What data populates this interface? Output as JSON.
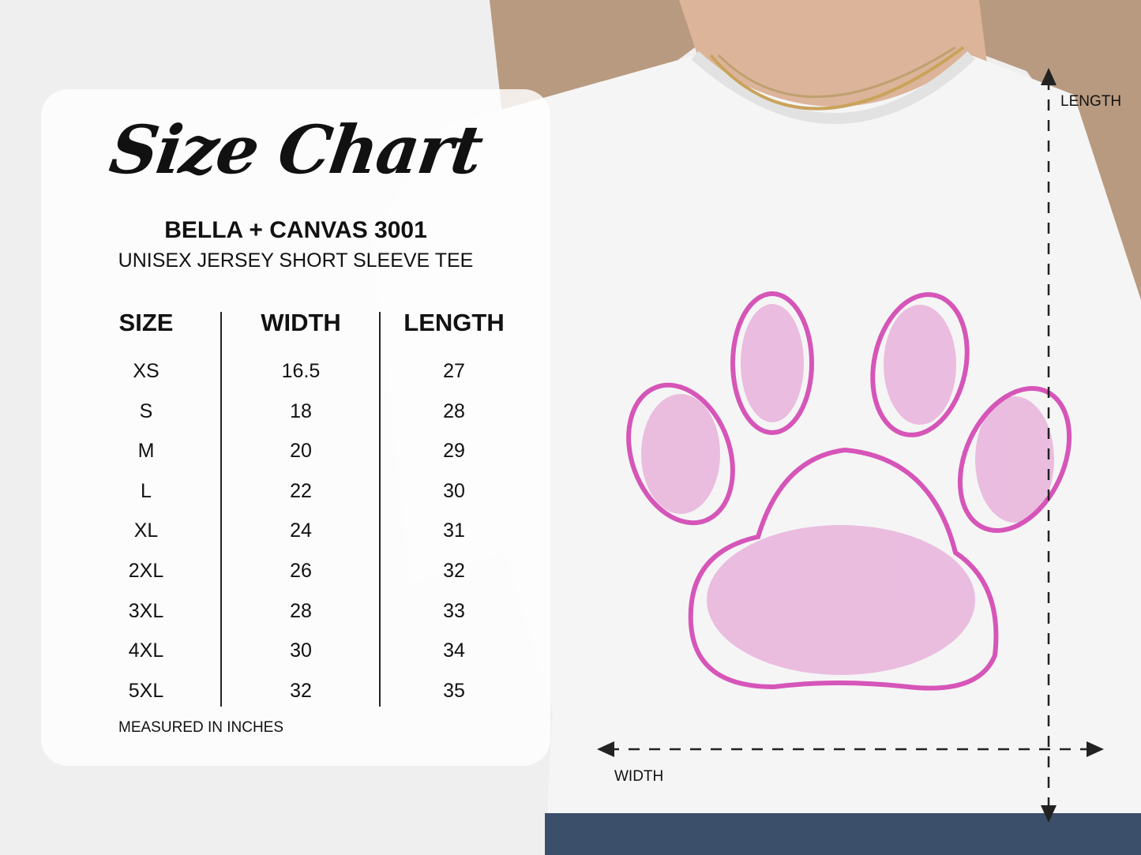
{
  "chart": {
    "title": "Size Chart",
    "brand": "BELLA + CANVAS 3001",
    "subtitle": "UNISEX JERSEY SHORT SLEEVE TEE",
    "headers": [
      "SIZE",
      "WIDTH",
      "LENGTH"
    ],
    "sizes": [
      "XS",
      "S",
      "M",
      "L",
      "XL",
      "2XL",
      "3XL",
      "4XL",
      "5XL"
    ],
    "widths": [
      "16.5",
      "18",
      "20",
      "22",
      "24",
      "26",
      "28",
      "30",
      "32"
    ],
    "lengths": [
      "27",
      "28",
      "29",
      "30",
      "31",
      "32",
      "33",
      "34",
      "35"
    ],
    "note": "MEASURED IN INCHES"
  },
  "diagram": {
    "length_label": "LENGTH",
    "width_label": "WIDTH"
  },
  "colors": {
    "print": "#d655b8",
    "shirt": "#f4f4f4",
    "text": "#111111"
  }
}
